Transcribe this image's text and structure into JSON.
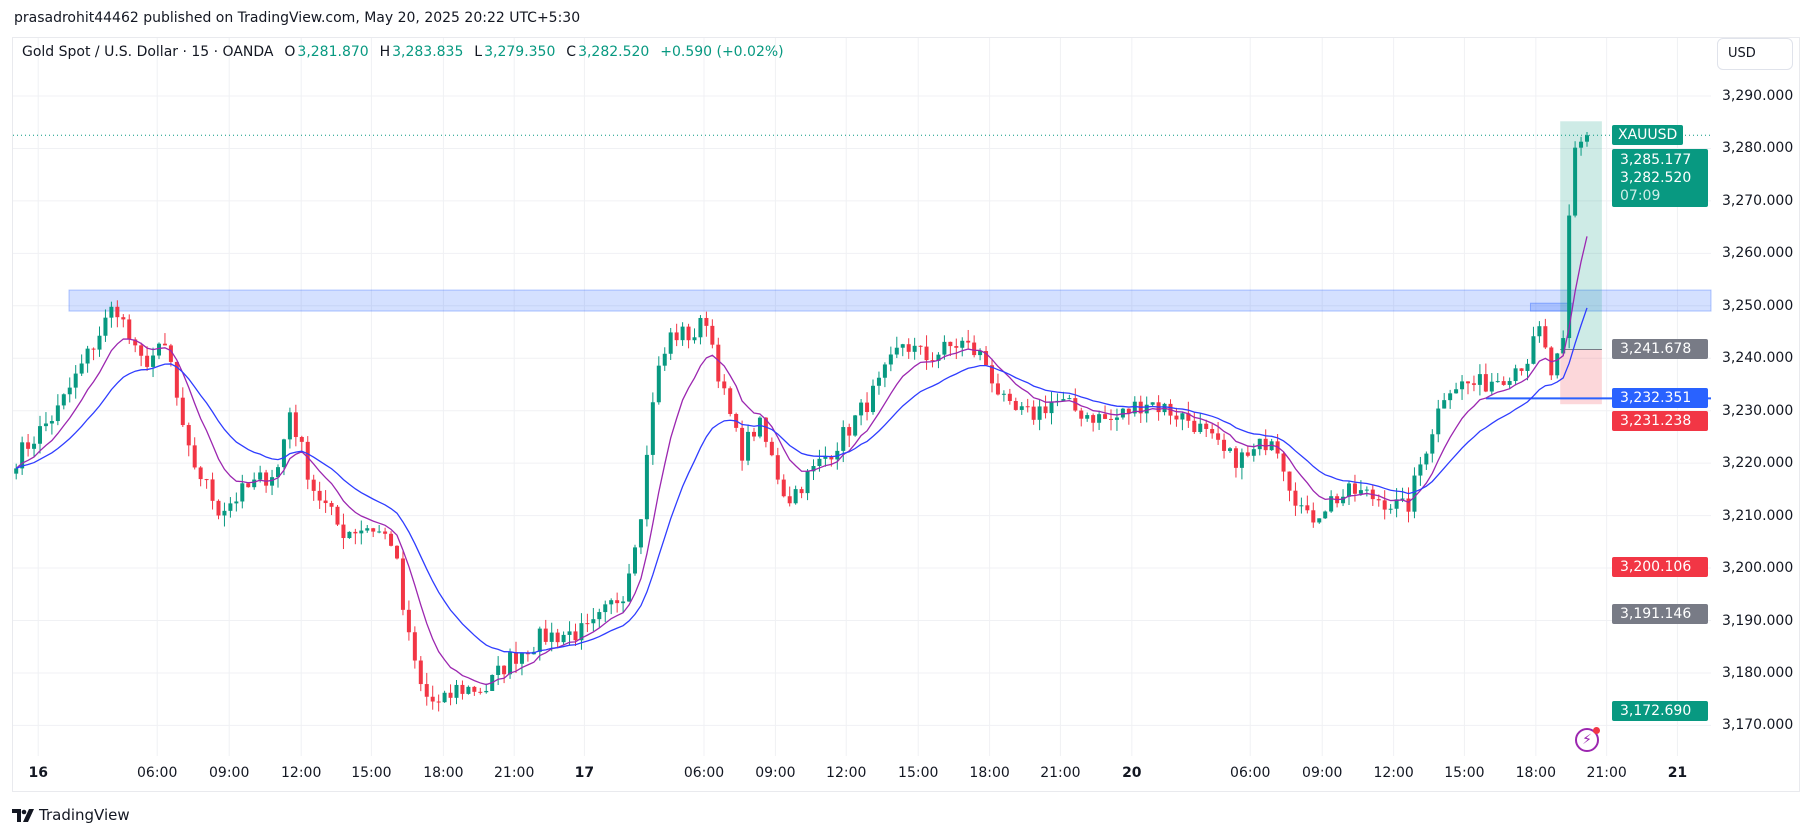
{
  "published": "prasadrohit44462 published on TradingView.com, May 20, 2025 20:22 UTC+5:30",
  "legend": {
    "title": "Gold Spot / U.S. Dollar · 15 · OANDA",
    "o_label": "O",
    "o": "3,281.870",
    "h_label": "H",
    "h": "3,283.835",
    "l_label": "L",
    "l": "3,279.350",
    "c_label": "C",
    "c": "3,282.520",
    "change": "+0.590 (+0.02%)"
  },
  "currency_button": "USD",
  "symbol_tag": "XAUUSD",
  "logo_text": "TradingView",
  "colors": {
    "up": "#089981",
    "down": "#f23645",
    "ema_fast": "#9c27b0",
    "ema_slow": "#2f3dff",
    "zone": "#2962ff"
  },
  "chart_data": {
    "type": "candlestick",
    "bars": 265,
    "ylim": [
      3163,
      3297
    ],
    "y_ticks": [
      3290,
      3280,
      3270,
      3260,
      3250,
      3240,
      3230,
      3220,
      3210,
      3200,
      3190,
      3180,
      3170
    ],
    "y_tick_labels": [
      "3,290.000",
      "3,280.000",
      "3,270.000",
      "3,260.000",
      "3,250.000",
      "3,240.000",
      "3,230.000",
      "3,220.000",
      "3,210.000",
      "3,200.000",
      "3,190.000",
      "3,180.000",
      "3,170.000"
    ],
    "close_path": [
      [
        0,
        3221
      ],
      [
        7,
        3230
      ],
      [
        16.7,
        3250.5
      ],
      [
        20.6,
        3239
      ],
      [
        25.5,
        3242
      ],
      [
        28.4,
        3223
      ],
      [
        34.2,
        3211
      ],
      [
        38.1,
        3214.5
      ],
      [
        44,
        3219
      ],
      [
        46,
        3230
      ],
      [
        49.8,
        3215.6
      ],
      [
        54.7,
        3207
      ],
      [
        59.5,
        3208
      ],
      [
        63.4,
        3205
      ],
      [
        65.4,
        3189
      ],
      [
        68.3,
        3176
      ],
      [
        71.2,
        3173.5
      ],
      [
        74.1,
        3177
      ],
      [
        79,
        3177
      ],
      [
        82.9,
        3182.6
      ],
      [
        88.7,
        3187
      ],
      [
        96.5,
        3188
      ],
      [
        102.3,
        3196
      ],
      [
        105.3,
        3213
      ],
      [
        107.2,
        3235
      ],
      [
        110.1,
        3244.5
      ],
      [
        114,
        3244.5
      ],
      [
        116,
        3247.7
      ],
      [
        118.9,
        3233
      ],
      [
        121.8,
        3222
      ],
      [
        124.7,
        3227.7
      ],
      [
        129.6,
        3213
      ],
      [
        133.5,
        3218
      ],
      [
        139.3,
        3225.6
      ],
      [
        145.1,
        3235
      ],
      [
        149,
        3243
      ],
      [
        152.9,
        3240
      ],
      [
        158.8,
        3243
      ],
      [
        162.6,
        3240
      ],
      [
        166.5,
        3230
      ],
      [
        170.4,
        3229
      ],
      [
        174.3,
        3232
      ],
      [
        178.2,
        3230
      ],
      [
        184,
        3228
      ],
      [
        189.9,
        3232
      ],
      [
        193.8,
        3230
      ],
      [
        197.7,
        3228
      ],
      [
        203.5,
        3221
      ],
      [
        207.4,
        3221
      ],
      [
        211.3,
        3226
      ],
      [
        214.2,
        3215.7
      ],
      [
        217.1,
        3209
      ],
      [
        221,
        3213
      ],
      [
        224.9,
        3214.5
      ],
      [
        229.8,
        3213
      ],
      [
        233.7,
        3211
      ],
      [
        236.6,
        3222
      ],
      [
        240.5,
        3235
      ],
      [
        246.3,
        3235
      ],
      [
        250.2,
        3237
      ],
      [
        254,
        3240
      ],
      [
        256,
        3245
      ],
      [
        258,
        3237
      ],
      [
        260,
        3242
      ],
      [
        261,
        3266
      ],
      [
        262,
        3279.5
      ],
      [
        264,
        3282.5
      ]
    ],
    "ema_periods": [
      9,
      21
    ],
    "time_labels": [
      [
        "16",
        3.7,
        true
      ],
      [
        "06:00",
        23.7
      ],
      [
        "09:00",
        35.8
      ],
      [
        "12:00",
        47.9
      ],
      [
        "15:00",
        59.7
      ],
      [
        "18:00",
        71.8
      ],
      [
        "21:00",
        83.7
      ],
      [
        "17",
        95.5,
        true
      ],
      [
        "06:00",
        115.6
      ],
      [
        "09:00",
        127.6
      ],
      [
        "12:00",
        139.5
      ],
      [
        "15:00",
        151.6
      ],
      [
        "18:00",
        163.6
      ],
      [
        "21:00",
        175.5
      ],
      [
        "20",
        187.5,
        true
      ],
      [
        "06:00",
        207.4
      ],
      [
        "09:00",
        219.5
      ],
      [
        "12:00",
        231.5
      ],
      [
        "15:00",
        243.4
      ],
      [
        "18:00",
        255.4
      ],
      [
        "21:00",
        267.3
      ],
      [
        "21",
        279.2,
        true
      ]
    ],
    "resistance_zone": [
      3249,
      3253
    ],
    "position": {
      "entry": 3241.678,
      "target": 3285.177,
      "stop": 3231.238,
      "start_bar": 259.5,
      "end_bar": 266.5
    },
    "horizontal_line": 3232.351,
    "last_price": 3282.52,
    "price_tags": [
      {
        "value": 3241.678,
        "label": "3,241.678",
        "color": "#787b86"
      },
      {
        "value": 3232.351,
        "label": "3,232.351",
        "color": "#2962ff"
      },
      {
        "value": 3231.238,
        "label": "3,231.238",
        "color": "#f23645"
      },
      {
        "value": 3200.106,
        "label": "3,200.106",
        "color": "#f23645"
      },
      {
        "value": 3191.146,
        "label": "3,191.146",
        "color": "#787b86"
      },
      {
        "value": 3172.69,
        "label": "3,172.690",
        "color": "#089981"
      }
    ],
    "last_tag": {
      "high": "3,285.177",
      "price": "3,282.520",
      "countdown": "07:09"
    }
  }
}
